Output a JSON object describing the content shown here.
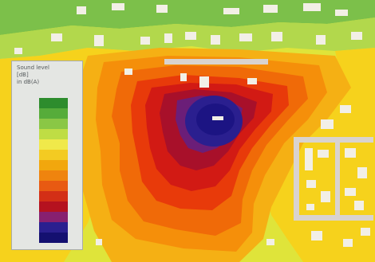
{
  "map": {
    "colors": {
      "source_core": "#1c1483",
      "ring_navy": "#2a1f8f",
      "ring_purple": "#6b1e78",
      "ring_dark_red": "#a8102a",
      "ring_red": "#d21a14",
      "ring_red_orange": "#e83a0a",
      "ring_orange": "#f06a08",
      "ring_light_orange": "#f58f0a",
      "ring_amber": "#f5b014",
      "ring_yellow": "#f6d21c",
      "ring_yellow_green": "#dfe43a",
      "ring_lime": "#b2d84c",
      "ring_green": "#7cc04a",
      "building_fill": "#f2efe6",
      "road_fill": "#d9d3cf"
    },
    "legend": {
      "title": "Sound level\n[dB]\nin dB(A)",
      "swatch_colors": [
        "#2d8c2d",
        "#56ac3a",
        "#8ac745",
        "#bfdd44",
        "#f0e94a",
        "#f3cb22",
        "#f2a70d",
        "#ef840e",
        "#e85a12",
        "#d32f16",
        "#b5121f",
        "#872070",
        "#2a1f8f",
        "#141070"
      ],
      "left_labels": [
        "",
        "",
        "",
        "",
        "",
        "",
        "",
        "",
        "",
        "",
        "",
        "",
        "",
        ""
      ],
      "right_labels": [
        "",
        "",
        "",
        "",
        "",
        "",
        "",
        "",
        "",
        "",
        "",
        "",
        "",
        ""
      ]
    }
  }
}
